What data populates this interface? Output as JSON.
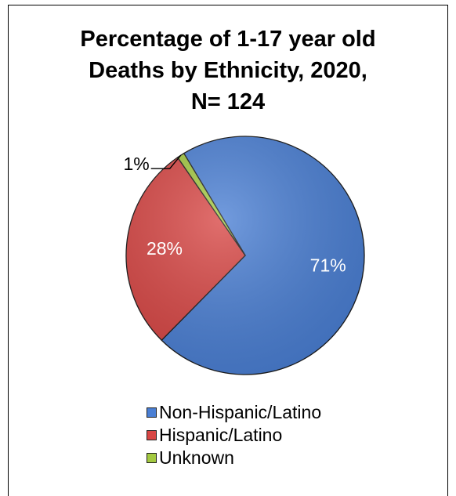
{
  "chart_data": {
    "type": "pie",
    "title_lines": [
      "Percentage of 1-17 year old",
      "Deaths by Ethnicity, 2020,",
      "N= 124"
    ],
    "slices": [
      {
        "name": "Non-Hispanic/Latino",
        "value": 71,
        "label": "71%",
        "color": "#4a7fd4"
      },
      {
        "name": "Hispanic/Latino",
        "value": 28,
        "label": "28%",
        "color": "#d84644"
      },
      {
        "name": "Unknown",
        "value": 1,
        "label": "1%",
        "color": "#a3c940"
      }
    ],
    "legend": {
      "position": "bottom"
    }
  }
}
